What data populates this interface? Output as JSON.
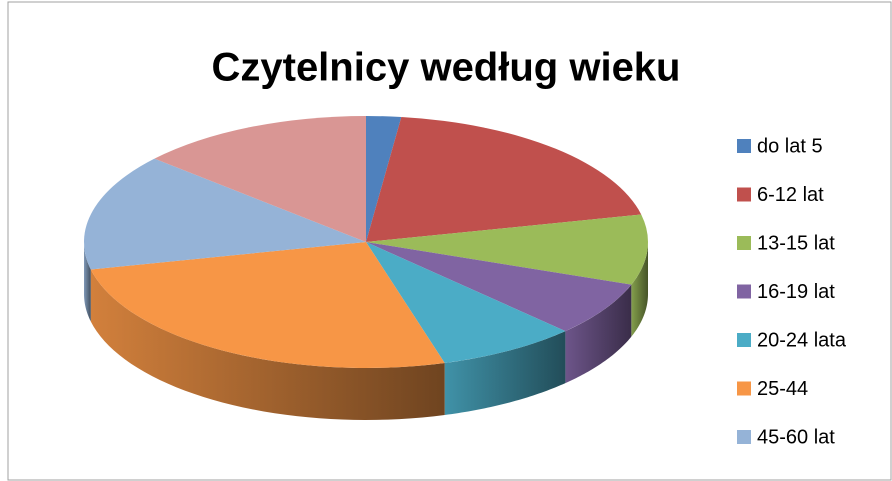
{
  "chart_data": {
    "type": "pie3d",
    "title": "Czytelnicy według wieku",
    "categories": [
      "do lat 5",
      "6-12 lat",
      "13-15 lat",
      "16-19 lat",
      "20-24 lata",
      "25-44",
      "45-60 lat",
      null
    ],
    "values": [
      2,
      19.5,
      9,
      7,
      8,
      26,
      15,
      13.5
    ],
    "colors": [
      "#4f81bd",
      "#c0504d",
      "#9bbb59",
      "#8064a2",
      "#4bacc6",
      "#f79646",
      "#95b3d7",
      "#d99694"
    ],
    "legend": "right"
  }
}
